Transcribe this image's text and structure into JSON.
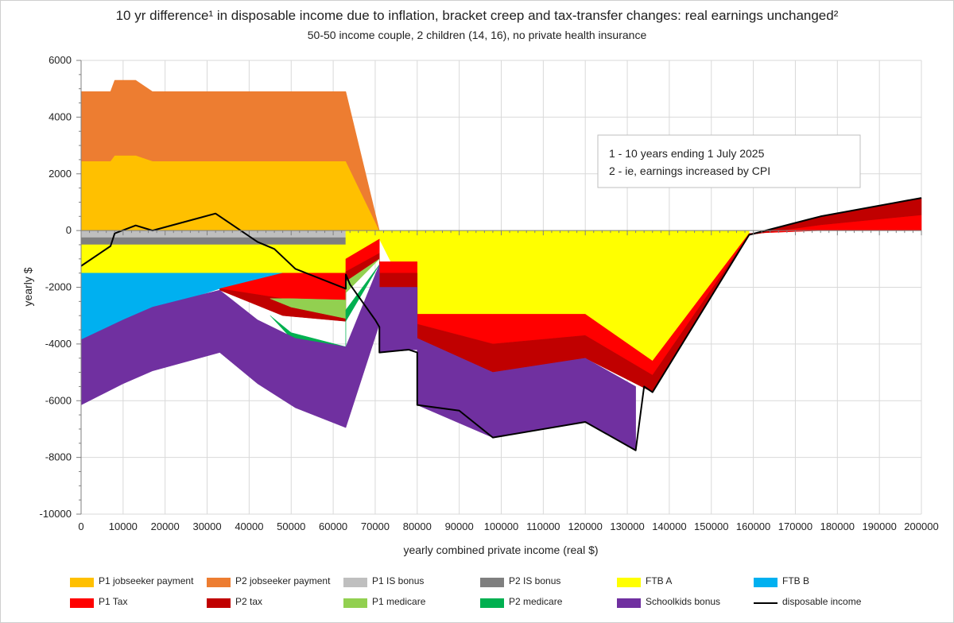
{
  "chart_data": {
    "type": "area",
    "title": "10 yr difference¹ in disposable income due to inflation, bracket creep and tax-transfer changes: real earnings unchanged²",
    "subtitle": "50-50 income couple, 2 children (14, 16), no private health insurance",
    "xlabel": "yearly combined private income (real $)",
    "ylabel": "yearly $",
    "xlim": [
      0,
      200000
    ],
    "ylim": [
      -10000,
      6000
    ],
    "x_ticks": [
      0,
      10000,
      20000,
      30000,
      40000,
      50000,
      60000,
      70000,
      80000,
      90000,
      100000,
      110000,
      120000,
      130000,
      140000,
      150000,
      160000,
      170000,
      180000,
      190000,
      200000
    ],
    "y_ticks": [
      -10000,
      -8000,
      -6000,
      -4000,
      -2000,
      0,
      2000,
      4000,
      6000
    ],
    "grid": true,
    "legend_position": "bottom",
    "annotation": [
      "1 - 10 years ending 1 July 2025",
      "2 - ie, earnings increased by CPI"
    ],
    "series": [
      {
        "name": "P1 jobseeker payment",
        "color": "#FFC000",
        "kind": "area",
        "points": [
          [
            0,
            0,
            2450
          ],
          [
            7000,
            0,
            2450
          ],
          [
            8000,
            0,
            2650
          ],
          [
            13000,
            0,
            2650
          ],
          [
            17000,
            0,
            2450
          ],
          [
            63000,
            0,
            2450
          ],
          [
            71000,
            0,
            0
          ]
        ]
      },
      {
        "name": "P2 jobseeker payment",
        "color": "#ED7D31",
        "kind": "area",
        "points": [
          [
            0,
            2450,
            4900
          ],
          [
            7000,
            2450,
            4900
          ],
          [
            8000,
            2650,
            5300
          ],
          [
            13000,
            2650,
            5300
          ],
          [
            17000,
            2450,
            4900
          ],
          [
            63000,
            2450,
            4900
          ],
          [
            71000,
            0,
            0
          ]
        ]
      },
      {
        "name": "P1 IS bonus",
        "color": "#BFBFBF",
        "kind": "area",
        "points": [
          [
            0,
            0,
            -250
          ],
          [
            63000,
            0,
            -250
          ]
        ]
      },
      {
        "name": "P2 IS bonus",
        "color": "#7F7F7F",
        "kind": "area",
        "points": [
          [
            0,
            -250,
            -500
          ],
          [
            63000,
            -250,
            -500
          ]
        ]
      },
      {
        "name": "FTB A",
        "color": "#FFFF00",
        "kind": "area",
        "points": [
          [
            0,
            -500,
            -1500
          ],
          [
            63000,
            -500,
            -1500
          ],
          [
            63000,
            0,
            -1000
          ],
          [
            71000,
            0,
            -300
          ],
          [
            80000,
            0,
            -2950
          ],
          [
            120000,
            0,
            -2950
          ],
          [
            136000,
            0,
            -4600
          ],
          [
            159000,
            0,
            -100
          ]
        ]
      },
      {
        "name": "FTB B",
        "color": "#00B0F0",
        "kind": "area",
        "points": [
          [
            0,
            -1500,
            -3850
          ],
          [
            10000,
            -1500,
            -3150
          ],
          [
            33000,
            -1500,
            -2050
          ],
          [
            48000,
            -1500,
            -1500
          ]
        ]
      },
      {
        "name": "P1 Tax",
        "color": "#FF0000",
        "kind": "area",
        "points": [
          [
            33000,
            -2050,
            -2050
          ],
          [
            48000,
            -1500,
            -2400
          ],
          [
            63000,
            -1500,
            -2450
          ],
          [
            63000,
            -1000,
            -1450
          ],
          [
            71000,
            -300,
            -800
          ],
          [
            71000,
            -1100,
            -1500
          ],
          [
            80000,
            -1100,
            -1500
          ],
          [
            80000,
            -2950,
            -3300
          ],
          [
            98000,
            -2950,
            -4000
          ],
          [
            120000,
            -2950,
            -3700
          ],
          [
            136000,
            -4600,
            -5100
          ],
          [
            159000,
            -100,
            -150
          ],
          [
            176000,
            0,
            200
          ],
          [
            200000,
            0,
            550
          ]
        ]
      },
      {
        "name": "P2 tax",
        "color": "#C00000",
        "kind": "area",
        "points": [
          [
            33000,
            -2050,
            -2100
          ],
          [
            48000,
            -2400,
            -3000
          ],
          [
            63000,
            -2450,
            -3200
          ],
          [
            63000,
            -1450,
            -1800
          ],
          [
            71000,
            -800,
            -1000
          ],
          [
            71000,
            -1500,
            -2000
          ],
          [
            80000,
            -1500,
            -2000
          ],
          [
            80000,
            -3300,
            -3800
          ],
          [
            98000,
            -4000,
            -5000
          ],
          [
            120000,
            -3700,
            -4500
          ],
          [
            136000,
            -5100,
            -5700
          ],
          [
            159000,
            -150,
            -150
          ],
          [
            176000,
            200,
            500
          ],
          [
            200000,
            550,
            1150
          ]
        ]
      },
      {
        "name": "P1 medicare",
        "color": "#92D050",
        "kind": "area",
        "points": [
          [
            45000,
            -2400,
            -2400
          ],
          [
            50000,
            -2400,
            -2700
          ],
          [
            63000,
            -2450,
            -3100
          ],
          [
            63000,
            -1800,
            -2200
          ],
          [
            71000,
            -1000,
            -1000
          ]
        ]
      },
      {
        "name": "P2 medicare",
        "color": "#00B050",
        "kind": "area",
        "points": [
          [
            45000,
            -3000,
            -3000
          ],
          [
            50000,
            -3600,
            -3800
          ],
          [
            63000,
            -4100,
            -4700
          ],
          [
            63000,
            -2800,
            -3200
          ],
          [
            71000,
            -1200,
            -1200
          ]
        ]
      },
      {
        "name": "Schoolkids bonus",
        "color": "#7030A0",
        "kind": "area",
        "points": [
          [
            0,
            -3850,
            -6150
          ],
          [
            10000,
            -3150,
            -5400
          ],
          [
            17000,
            -2700,
            -4950
          ],
          [
            33000,
            -2100,
            -4300
          ],
          [
            42000,
            -3150,
            -5400
          ],
          [
            51000,
            -3800,
            -6250
          ],
          [
            63000,
            -4100,
            -6950
          ],
          [
            71000,
            -1200,
            -3300
          ],
          [
            71000,
            -2000,
            -4300
          ],
          [
            80000,
            -2000,
            -4200
          ],
          [
            80000,
            -3800,
            -6150
          ],
          [
            98000,
            -5000,
            -7300
          ],
          [
            120000,
            -4500,
            -6750
          ],
          [
            132000,
            -5500,
            -7750
          ]
        ]
      },
      {
        "name": "disposable income",
        "color": "#000000",
        "kind": "line",
        "x": [
          0,
          7000,
          8000,
          13000,
          17000,
          32000,
          42000,
          46000,
          51000,
          63000,
          63000,
          64000,
          70000,
          71000,
          71000,
          78000,
          80000,
          80000,
          90000,
          98000,
          120000,
          132000,
          134000,
          136000,
          159000,
          176000,
          200000
        ],
        "y": [
          -1250,
          -550,
          -100,
          180,
          0,
          600,
          -400,
          -650,
          -1350,
          -2050,
          -1550,
          -1900,
          -3150,
          -3400,
          -4300,
          -4200,
          -4300,
          -6150,
          -6350,
          -7300,
          -6750,
          -7750,
          -5500,
          -5700,
          -150,
          500,
          1150
        ]
      }
    ]
  }
}
